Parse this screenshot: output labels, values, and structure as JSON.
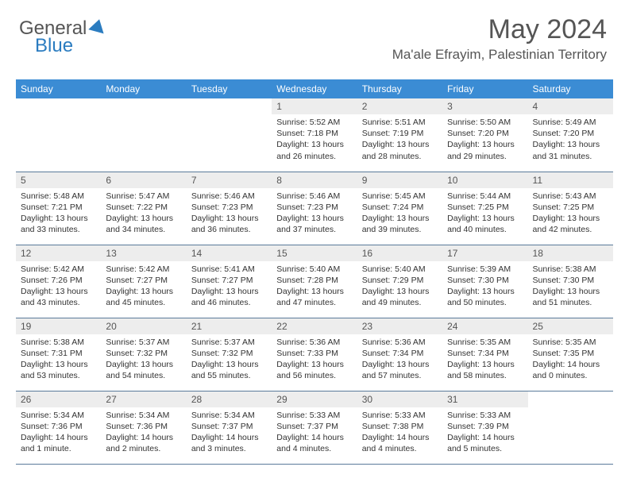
{
  "brand": {
    "part1": "General",
    "part2": "Blue"
  },
  "header": {
    "month_title": "May 2024",
    "location": "Ma'ale Efrayim, Palestinian Territory"
  },
  "colors": {
    "header_bg": "#3b8cd4",
    "header_text": "#ffffff",
    "daynum_bg": "#ededed",
    "daynum_text": "#555555",
    "content_text": "#333333",
    "border": "#5a7a9a",
    "accent": "#2b7cc0",
    "page_bg": "#ffffff"
  },
  "weekdays": [
    "Sunday",
    "Monday",
    "Tuesday",
    "Wednesday",
    "Thursday",
    "Friday",
    "Saturday"
  ],
  "weeks": [
    [
      null,
      null,
      null,
      {
        "n": "1",
        "sunrise": "5:52 AM",
        "sunset": "7:18 PM",
        "daylight": "13 hours and 26 minutes."
      },
      {
        "n": "2",
        "sunrise": "5:51 AM",
        "sunset": "7:19 PM",
        "daylight": "13 hours and 28 minutes."
      },
      {
        "n": "3",
        "sunrise": "5:50 AM",
        "sunset": "7:20 PM",
        "daylight": "13 hours and 29 minutes."
      },
      {
        "n": "4",
        "sunrise": "5:49 AM",
        "sunset": "7:20 PM",
        "daylight": "13 hours and 31 minutes."
      }
    ],
    [
      {
        "n": "5",
        "sunrise": "5:48 AM",
        "sunset": "7:21 PM",
        "daylight": "13 hours and 33 minutes."
      },
      {
        "n": "6",
        "sunrise": "5:47 AM",
        "sunset": "7:22 PM",
        "daylight": "13 hours and 34 minutes."
      },
      {
        "n": "7",
        "sunrise": "5:46 AM",
        "sunset": "7:23 PM",
        "daylight": "13 hours and 36 minutes."
      },
      {
        "n": "8",
        "sunrise": "5:46 AM",
        "sunset": "7:23 PM",
        "daylight": "13 hours and 37 minutes."
      },
      {
        "n": "9",
        "sunrise": "5:45 AM",
        "sunset": "7:24 PM",
        "daylight": "13 hours and 39 minutes."
      },
      {
        "n": "10",
        "sunrise": "5:44 AM",
        "sunset": "7:25 PM",
        "daylight": "13 hours and 40 minutes."
      },
      {
        "n": "11",
        "sunrise": "5:43 AM",
        "sunset": "7:25 PM",
        "daylight": "13 hours and 42 minutes."
      }
    ],
    [
      {
        "n": "12",
        "sunrise": "5:42 AM",
        "sunset": "7:26 PM",
        "daylight": "13 hours and 43 minutes."
      },
      {
        "n": "13",
        "sunrise": "5:42 AM",
        "sunset": "7:27 PM",
        "daylight": "13 hours and 45 minutes."
      },
      {
        "n": "14",
        "sunrise": "5:41 AM",
        "sunset": "7:27 PM",
        "daylight": "13 hours and 46 minutes."
      },
      {
        "n": "15",
        "sunrise": "5:40 AM",
        "sunset": "7:28 PM",
        "daylight": "13 hours and 47 minutes."
      },
      {
        "n": "16",
        "sunrise": "5:40 AM",
        "sunset": "7:29 PM",
        "daylight": "13 hours and 49 minutes."
      },
      {
        "n": "17",
        "sunrise": "5:39 AM",
        "sunset": "7:30 PM",
        "daylight": "13 hours and 50 minutes."
      },
      {
        "n": "18",
        "sunrise": "5:38 AM",
        "sunset": "7:30 PM",
        "daylight": "13 hours and 51 minutes."
      }
    ],
    [
      {
        "n": "19",
        "sunrise": "5:38 AM",
        "sunset": "7:31 PM",
        "daylight": "13 hours and 53 minutes."
      },
      {
        "n": "20",
        "sunrise": "5:37 AM",
        "sunset": "7:32 PM",
        "daylight": "13 hours and 54 minutes."
      },
      {
        "n": "21",
        "sunrise": "5:37 AM",
        "sunset": "7:32 PM",
        "daylight": "13 hours and 55 minutes."
      },
      {
        "n": "22",
        "sunrise": "5:36 AM",
        "sunset": "7:33 PM",
        "daylight": "13 hours and 56 minutes."
      },
      {
        "n": "23",
        "sunrise": "5:36 AM",
        "sunset": "7:34 PM",
        "daylight": "13 hours and 57 minutes."
      },
      {
        "n": "24",
        "sunrise": "5:35 AM",
        "sunset": "7:34 PM",
        "daylight": "13 hours and 58 minutes."
      },
      {
        "n": "25",
        "sunrise": "5:35 AM",
        "sunset": "7:35 PM",
        "daylight": "14 hours and 0 minutes."
      }
    ],
    [
      {
        "n": "26",
        "sunrise": "5:34 AM",
        "sunset": "7:36 PM",
        "daylight": "14 hours and 1 minute."
      },
      {
        "n": "27",
        "sunrise": "5:34 AM",
        "sunset": "7:36 PM",
        "daylight": "14 hours and 2 minutes."
      },
      {
        "n": "28",
        "sunrise": "5:34 AM",
        "sunset": "7:37 PM",
        "daylight": "14 hours and 3 minutes."
      },
      {
        "n": "29",
        "sunrise": "5:33 AM",
        "sunset": "7:37 PM",
        "daylight": "14 hours and 4 minutes."
      },
      {
        "n": "30",
        "sunrise": "5:33 AM",
        "sunset": "7:38 PM",
        "daylight": "14 hours and 4 minutes."
      },
      {
        "n": "31",
        "sunrise": "5:33 AM",
        "sunset": "7:39 PM",
        "daylight": "14 hours and 5 minutes."
      },
      null
    ]
  ],
  "labels": {
    "sunrise_prefix": "Sunrise: ",
    "sunset_prefix": "Sunset: ",
    "daylight_prefix": "Daylight: "
  }
}
